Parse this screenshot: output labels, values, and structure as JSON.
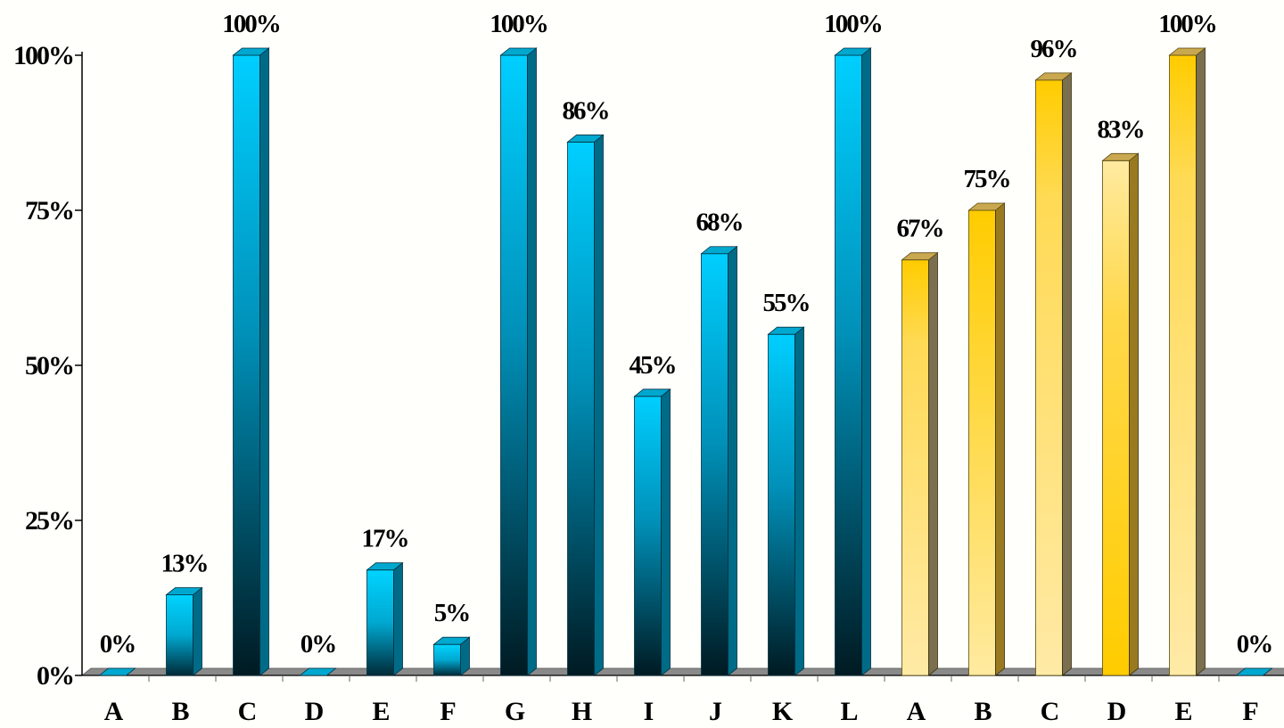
{
  "chart_data": {
    "type": "bar",
    "title": "",
    "xlabel": "",
    "ylabel": "",
    "ylim": [
      0,
      100
    ],
    "yticks": [
      0,
      25,
      50,
      75,
      100
    ],
    "ytick_labels": [
      "0%",
      "25%",
      "50%",
      "75%",
      "100%"
    ],
    "grid": false,
    "legend": "none",
    "categories": [
      "A",
      "B",
      "C",
      "D",
      "E",
      "F",
      "G",
      "H",
      "I",
      "J",
      "K",
      "L",
      "A",
      "B",
      "C",
      "D",
      "E",
      "F"
    ],
    "values": [
      0,
      13,
      100,
      0,
      17,
      5,
      100,
      86,
      45,
      68,
      55,
      100,
      67,
      75,
      96,
      83,
      100,
      0
    ],
    "data_labels": [
      "0%",
      "13%",
      "100%",
      "0%",
      "17%",
      "5%",
      "100%",
      "86%",
      "45%",
      "68%",
      "55%",
      "100%",
      "67%",
      "75%",
      "96%",
      "83%",
      "100%",
      "0%"
    ],
    "bar_styles": [
      "cyan-up",
      "cyan-up",
      "cyan-down",
      "cyan-up",
      "cyan-up",
      "cyan-up",
      "cyan-down",
      "cyan-down",
      "cyan-down",
      "cyan-down",
      "cyan-down",
      "cyan-down",
      "gold-light",
      "gold-up",
      "gold-light",
      "gold-dark",
      "gold-light",
      "cyan-up"
    ],
    "colors": {
      "cyan_bright": "#00cfff",
      "cyan_dark": "#001a22",
      "cyan_side": "#006b86",
      "cyan_top": "#00a8d0",
      "gold_bright": "#ffcc00",
      "gold_light": "#ffeaa0",
      "gold_side": "#9a7a20",
      "gold_side_light": "#7a7050",
      "gold_top": "#c9a850",
      "floor": "#8a8a8a",
      "axis": "#000000"
    }
  }
}
